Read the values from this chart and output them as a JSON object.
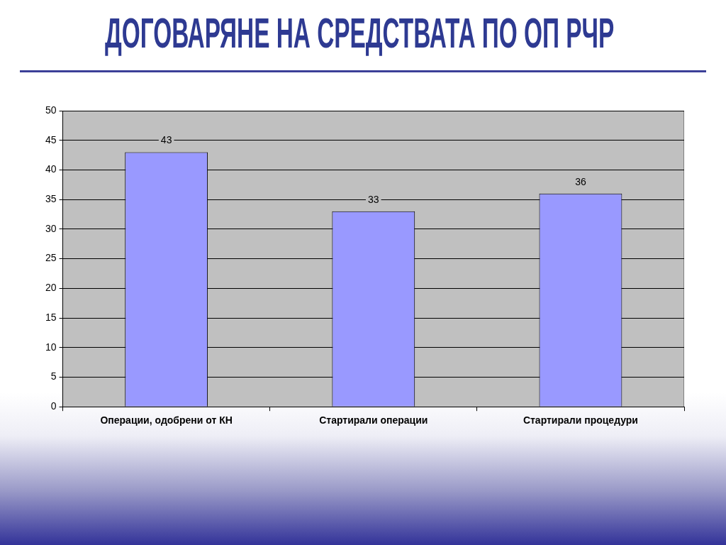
{
  "chart_data": {
    "type": "bar",
    "title": "ДОГОВАРЯНЕ НА СРЕДСТВАТА ПО ОП РЧР",
    "categories": [
      "Операции, одобрени от КН",
      "Стартирали операции",
      "Стартирали процедури"
    ],
    "values": [
      43,
      33,
      36
    ],
    "color": "#9999ff",
    "ylim": [
      0,
      50
    ],
    "yticks": [
      0,
      5,
      10,
      15,
      20,
      25,
      30,
      35,
      40,
      45,
      50
    ],
    "grid": "y",
    "data_labels": true
  }
}
